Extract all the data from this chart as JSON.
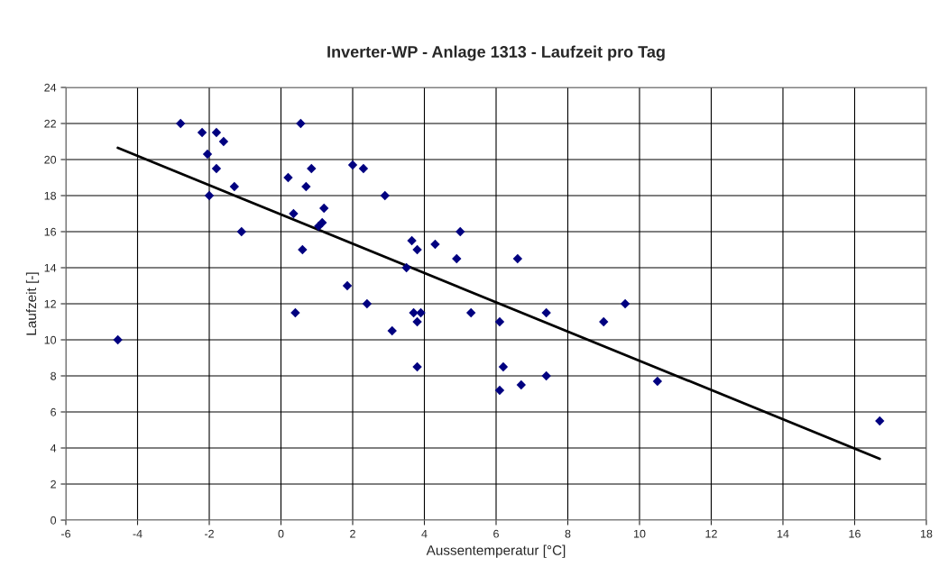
{
  "chart_data": {
    "type": "scatter",
    "title": "Inverter-WP - Anlage 1313 - Laufzeit pro Tag",
    "xlabel": "Aussentemperatur [°C]",
    "ylabel": "Laufzeit [-]",
    "xlim": [
      -6,
      18
    ],
    "xticks": [
      -6,
      -4,
      -2,
      0,
      2,
      4,
      6,
      8,
      10,
      12,
      14,
      16,
      18
    ],
    "ylim": [
      0,
      24
    ],
    "yticks": [
      0,
      2,
      4,
      6,
      8,
      10,
      12,
      14,
      16,
      18,
      20,
      22,
      24
    ],
    "grid": true,
    "series": [
      {
        "marker": "diamond",
        "color": "#000080",
        "x": [
          -4.55,
          -2.8,
          -2.2,
          -1.8,
          -1.6,
          -2.05,
          -1.8,
          -2,
          -1.3,
          -1.1,
          0.55,
          0.2,
          0.85,
          0.7,
          0.35,
          1.2,
          1.05,
          1.15,
          0.6,
          0.4,
          2,
          2.3,
          2.9,
          1.85,
          2.4,
          3.1,
          3.65,
          3.8,
          3.5,
          4.3,
          5,
          4.9,
          3.7,
          3.9,
          3.8,
          3.8,
          5.3,
          6.6,
          6.1,
          6.2,
          6.1,
          6.7,
          7.4,
          7.4,
          9,
          9.6,
          10.5,
          16.7
        ],
        "values": [
          10,
          22,
          21.5,
          21.5,
          21,
          20.3,
          19.5,
          18,
          18.5,
          16,
          22,
          19,
          19.5,
          18.5,
          17,
          17.3,
          16.3,
          16.5,
          15,
          11.5,
          19.7,
          19.5,
          18,
          13,
          12,
          10.5,
          15.5,
          15,
          14,
          15.3,
          16,
          14.5,
          11.5,
          11.5,
          11,
          8.5,
          11.5,
          14.5,
          11,
          8.5,
          7.2,
          7.5,
          11.5,
          8,
          11,
          12,
          7.7,
          5.5
        ]
      },
      {
        "type": "line",
        "color": "#000000",
        "x": [
          -4.55,
          16.7
        ],
        "values": [
          20.65,
          3.4
        ]
      }
    ]
  }
}
